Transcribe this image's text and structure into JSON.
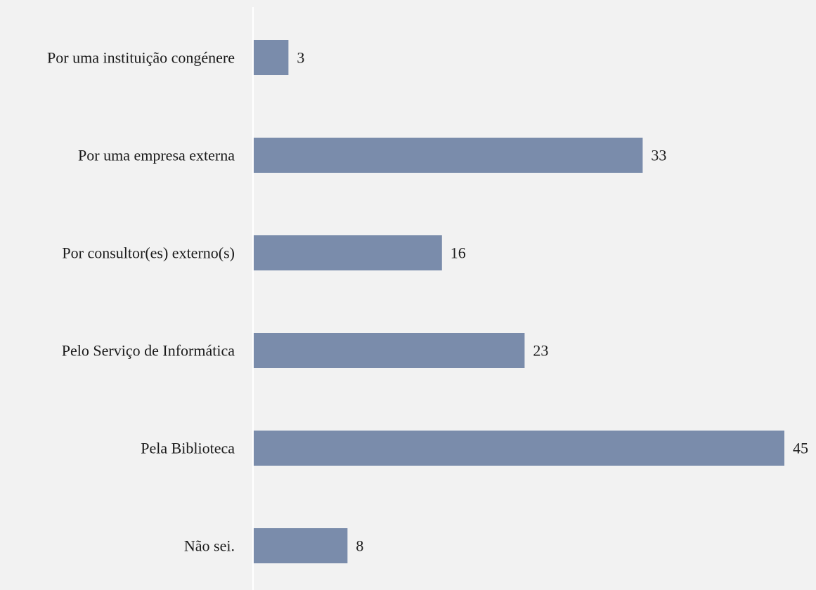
{
  "chart_data": {
    "type": "bar",
    "orientation": "horizontal",
    "categories": [
      "Por uma instituição congénere",
      "Por uma empresa externa",
      "Por consultor(es) externo(s)",
      "Pelo Serviço de Informática",
      "Pela Biblioteca",
      "Não sei."
    ],
    "values": [
      3,
      33,
      16,
      23,
      45,
      8
    ],
    "value_labels": [
      "3",
      "33",
      "16",
      "23",
      "45",
      "8"
    ],
    "xlim": [
      0,
      45
    ],
    "grid": false,
    "legend": "none",
    "bar_color": "#7a8cab",
    "axis_color": "#ffffff"
  }
}
